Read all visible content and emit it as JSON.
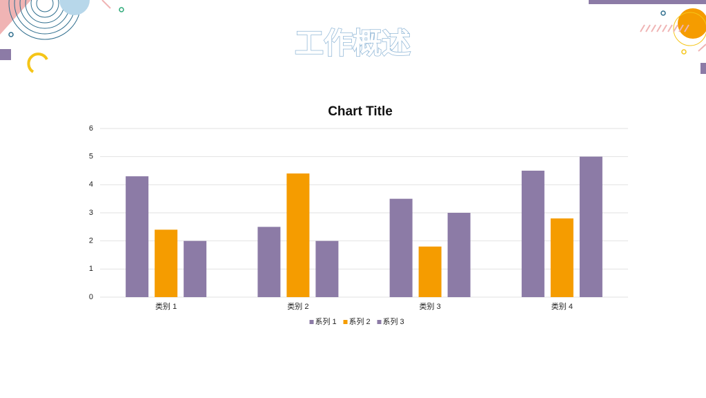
{
  "slide_title": "工作概述",
  "chart_data": {
    "type": "bar",
    "title": "Chart Title",
    "categories": [
      "类别 1",
      "类别 2",
      "类别 3",
      "类别 4"
    ],
    "series": [
      {
        "name": "系列 1",
        "color": "#8c7ba6",
        "values": [
          4.3,
          2.5,
          3.5,
          4.5
        ]
      },
      {
        "name": "系列 2",
        "color": "#f59c00",
        "values": [
          2.4,
          4.4,
          1.8,
          2.8
        ]
      },
      {
        "name": "系列 3",
        "color": "#8c7ba6",
        "values": [
          2,
          2,
          3,
          5
        ]
      }
    ],
    "ylim": [
      0,
      6
    ],
    "yticks": [
      0,
      1,
      2,
      3,
      4,
      5,
      6
    ],
    "grid": true,
    "legend": "bottom"
  }
}
